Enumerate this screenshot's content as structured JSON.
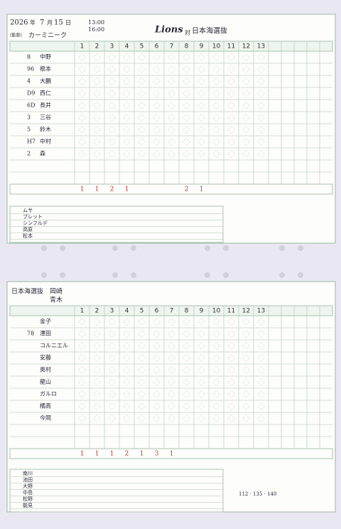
{
  "top": {
    "date": {
      "year": "2026",
      "year_mark": "年",
      "month": "7",
      "month_mark": "月",
      "day": "15",
      "day_mark": "日"
    },
    "start": "13:00",
    "end": "16:00",
    "team": "Lions",
    "vs": "対",
    "opponent": "日本海選抜",
    "manager_label": "(監督)",
    "manager": "カーミニーク",
    "innings": [
      "1",
      "2",
      "3",
      "4",
      "5",
      "6",
      "7",
      "8",
      "9",
      "10",
      "11",
      "12",
      "13"
    ],
    "lineup": [
      {
        "pos": "8",
        "name": "中野"
      },
      {
        "pos": "96",
        "name": "根本"
      },
      {
        "pos": "4",
        "name": "大鵬"
      },
      {
        "pos": "D9",
        "name": "西仁"
      },
      {
        "pos": "6D",
        "name": "長井"
      },
      {
        "pos": "3",
        "name": "三谷"
      },
      {
        "pos": "5",
        "name": "鈴木"
      },
      {
        "pos": "H7",
        "name": "中村"
      },
      {
        "pos": "2",
        "name": "森"
      }
    ],
    "runs": [
      "1",
      "1",
      "2",
      "1",
      null,
      null,
      null,
      "2",
      "1",
      null,
      null,
      null,
      null
    ],
    "pitchers": [
      "ムサ",
      "ブレット",
      "シンフルデ",
      "高原",
      "松本"
    ]
  },
  "bottom": {
    "team": "日本海選抜",
    "manager": "岡崎",
    "pitcher": "青木",
    "innings": [
      "1",
      "2",
      "3",
      "4",
      "5",
      "6",
      "7",
      "8",
      "9",
      "10",
      "11",
      "12",
      "13"
    ],
    "lineup": [
      {
        "pos": "",
        "name": "金子"
      },
      {
        "pos": "78",
        "name": "澤田"
      },
      {
        "pos": "",
        "name": "コルニエル"
      },
      {
        "pos": "",
        "name": "安藤"
      },
      {
        "pos": "",
        "name": "奥村"
      },
      {
        "pos": "",
        "name": "龍山"
      },
      {
        "pos": "",
        "name": "ガルロ"
      },
      {
        "pos": "",
        "name": "橘高"
      },
      {
        "pos": "",
        "name": "今岡"
      }
    ],
    "runs": [
      "1",
      "1",
      "1",
      "2",
      "1",
      "3",
      "1",
      null,
      null,
      null,
      null,
      null,
      null
    ],
    "pitchers": [
      "南川",
      "池田",
      "大野",
      "中島",
      "松野",
      "能見"
    ],
    "speeds": "112 · 135 · 140"
  }
}
